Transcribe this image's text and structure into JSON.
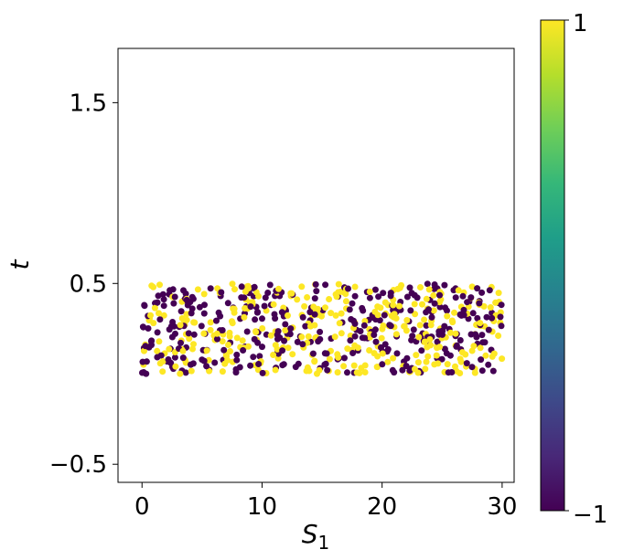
{
  "chart_data": {
    "type": "scatter",
    "xlabel": "S",
    "xlabel_sub": "1",
    "ylabel": "t",
    "xlim": [
      -2,
      31
    ],
    "ylim": [
      -0.6,
      1.8
    ],
    "xticks": [
      0,
      10,
      20,
      30
    ],
    "xtick_labels": [
      "0",
      "10",
      "20",
      "30"
    ],
    "yticks": [
      -0.5,
      0.5,
      1.5
    ],
    "ytick_labels": [
      "−0.5",
      "0.5",
      "1.5"
    ],
    "grid": false,
    "colorbar": {
      "colormap": "viridis",
      "range": [
        -1,
        1
      ],
      "tick_labels": [
        "−1",
        "1"
      ],
      "stops": [
        "#440154",
        "#482878",
        "#3e4989",
        "#31688e",
        "#26828e",
        "#1f9e89",
        "#35b779",
        "#6ece58",
        "#b5de2b",
        "#fde725"
      ]
    },
    "colors": {
      "low": "#440154",
      "high": "#fde725"
    },
    "sampling": {
      "count": 700,
      "x_range": [
        0,
        30
      ],
      "t_range": [
        0,
        0.5
      ],
      "values": [
        -1,
        1
      ]
    }
  }
}
